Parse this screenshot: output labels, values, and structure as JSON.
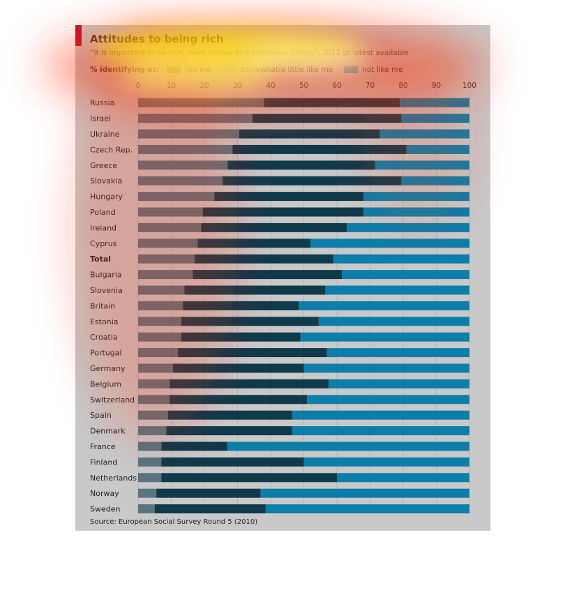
{
  "header": {
    "title": "Attitudes to being rich",
    "subtitle": "“It is important to be rich, have money and expensive things”, 2012 or latest available",
    "legend_lead": "% identifying as:",
    "source": "Source: European Social Survey Round 5 (2010)"
  },
  "colors": {
    "like_me": "#5a7480",
    "somewhat": "#0f3a4c",
    "not_like_me": "#0d7ea9",
    "panel": "#c9c9c9",
    "accent": "#c8102e"
  },
  "chart_data": {
    "type": "bar",
    "orientation": "horizontal",
    "stacked": true,
    "title": "Attitudes to being rich",
    "subtitle": "“It is important to be rich, have money and expensive things”, 2012 or latest available",
    "xlim": [
      0,
      100
    ],
    "xticks": [
      0,
      10,
      20,
      30,
      40,
      50,
      60,
      70,
      80,
      90,
      100
    ],
    "categories": [
      "Russia",
      "Israel",
      "Ukraine",
      "Czech Rep.",
      "Greece",
      "Slovakia",
      "Hungary",
      "Poland",
      "Ireland",
      "Cyprus",
      "Total",
      "Bulgaria",
      "Slovenia",
      "Britain",
      "Estonia",
      "Croatia",
      "Portugal",
      "Germany",
      "Belgium",
      "Switzerland",
      "Spain",
      "Denmark",
      "France",
      "Finland",
      "Netherlands",
      "Norway",
      "Sweden"
    ],
    "bold_categories": [
      "Total"
    ],
    "series": [
      {
        "name": "like me",
        "values": [
          38,
          34.5,
          30.5,
          28.5,
          27,
          25.5,
          23,
          19.5,
          19,
          18,
          17,
          16.5,
          14,
          13.5,
          13,
          13,
          12,
          10.5,
          9.5,
          9.5,
          9,
          8.5,
          7,
          7,
          7,
          5.5,
          5
        ]
      },
      {
        "name": "somewhat/a little like me",
        "values": [
          41,
          45,
          42.5,
          52.5,
          44.5,
          54,
          45,
          48.5,
          44,
          34,
          42,
          45,
          42.5,
          35,
          41.5,
          36,
          45,
          39.5,
          48,
          41.5,
          37.5,
          38,
          20,
          43,
          53,
          31.5,
          33.5
        ]
      },
      {
        "name": "not like me",
        "values": [
          21,
          20.5,
          27,
          19,
          28.5,
          20.5,
          32,
          32,
          37,
          48,
          41,
          38.5,
          43.5,
          51.5,
          45.5,
          51,
          43,
          50,
          42.5,
          49,
          53.5,
          53.5,
          73,
          50,
          40,
          63,
          61.5
        ]
      }
    ],
    "legend_position": "top",
    "grid": true,
    "source": "Source: European Social Survey Round 5 (2010)"
  }
}
